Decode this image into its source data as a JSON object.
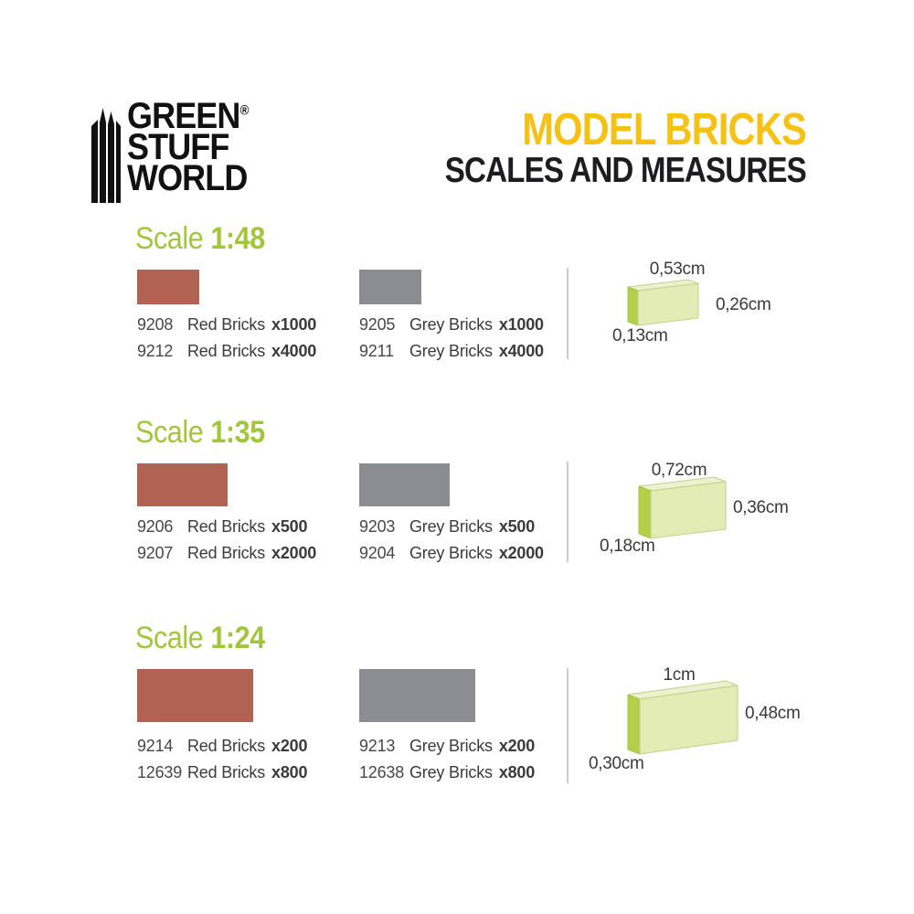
{
  "header": {
    "logo": {
      "line1": "GREEN",
      "line2": "STUFF",
      "line3": "WORLD",
      "registered": "®"
    },
    "title": "MODEL BRICKS",
    "subtitle": "SCALES AND MEASURES"
  },
  "colors": {
    "title_yellow": "#F6C115",
    "subtitle_black": "#1D1D1F",
    "scale_green": "#A2C63B",
    "red_swatch": "#B06253",
    "grey_swatch": "#8C8C93",
    "brick_front": "#E2ECB4",
    "brick_top": "#ECF2CF",
    "brick_side": "#B4D04A",
    "text": "#3B3B3D",
    "code_text": "#47474A",
    "divider": "#CCCCCC"
  },
  "sections": [
    {
      "scale_word": "Scale",
      "scale_value": "1:48",
      "red_rows": [
        {
          "code": "9208",
          "name": "Red Bricks",
          "qty": "x1000"
        },
        {
          "code": "9212",
          "name": "Red Bricks",
          "qty": "x4000"
        }
      ],
      "grey_rows": [
        {
          "code": "9205",
          "name": "Grey Bricks",
          "qty": "x1000"
        },
        {
          "code": "9211",
          "name": "Grey Bricks",
          "qty": "x4000"
        }
      ],
      "dims": {
        "top": "0,53cm",
        "right": "0,26cm",
        "bottom": "0,13cm"
      }
    },
    {
      "scale_word": "Scale",
      "scale_value": "1:35",
      "red_rows": [
        {
          "code": "9206",
          "name": "Red Bricks",
          "qty": "x500"
        },
        {
          "code": "9207",
          "name": "Red Bricks",
          "qty": "x2000"
        }
      ],
      "grey_rows": [
        {
          "code": "9203",
          "name": "Grey Bricks",
          "qty": "x500"
        },
        {
          "code": "9204",
          "name": "Grey Bricks",
          "qty": "x2000"
        }
      ],
      "dims": {
        "top": "0,72cm",
        "right": "0,36cm",
        "bottom": "0,18cm"
      }
    },
    {
      "scale_word": "Scale",
      "scale_value": "1:24",
      "red_rows": [
        {
          "code": "9214",
          "name": "Red Bricks",
          "qty": "x200"
        },
        {
          "code": "12639",
          "name": "Red Bricks",
          "qty": "x800"
        }
      ],
      "grey_rows": [
        {
          "code": "9213",
          "name": "Grey Bricks",
          "qty": "x200"
        },
        {
          "code": "12638",
          "name": "Grey Bricks",
          "qty": "x800"
        }
      ],
      "dims": {
        "top": "1cm",
        "right": "0,48cm",
        "bottom": "0,30cm"
      }
    }
  ]
}
